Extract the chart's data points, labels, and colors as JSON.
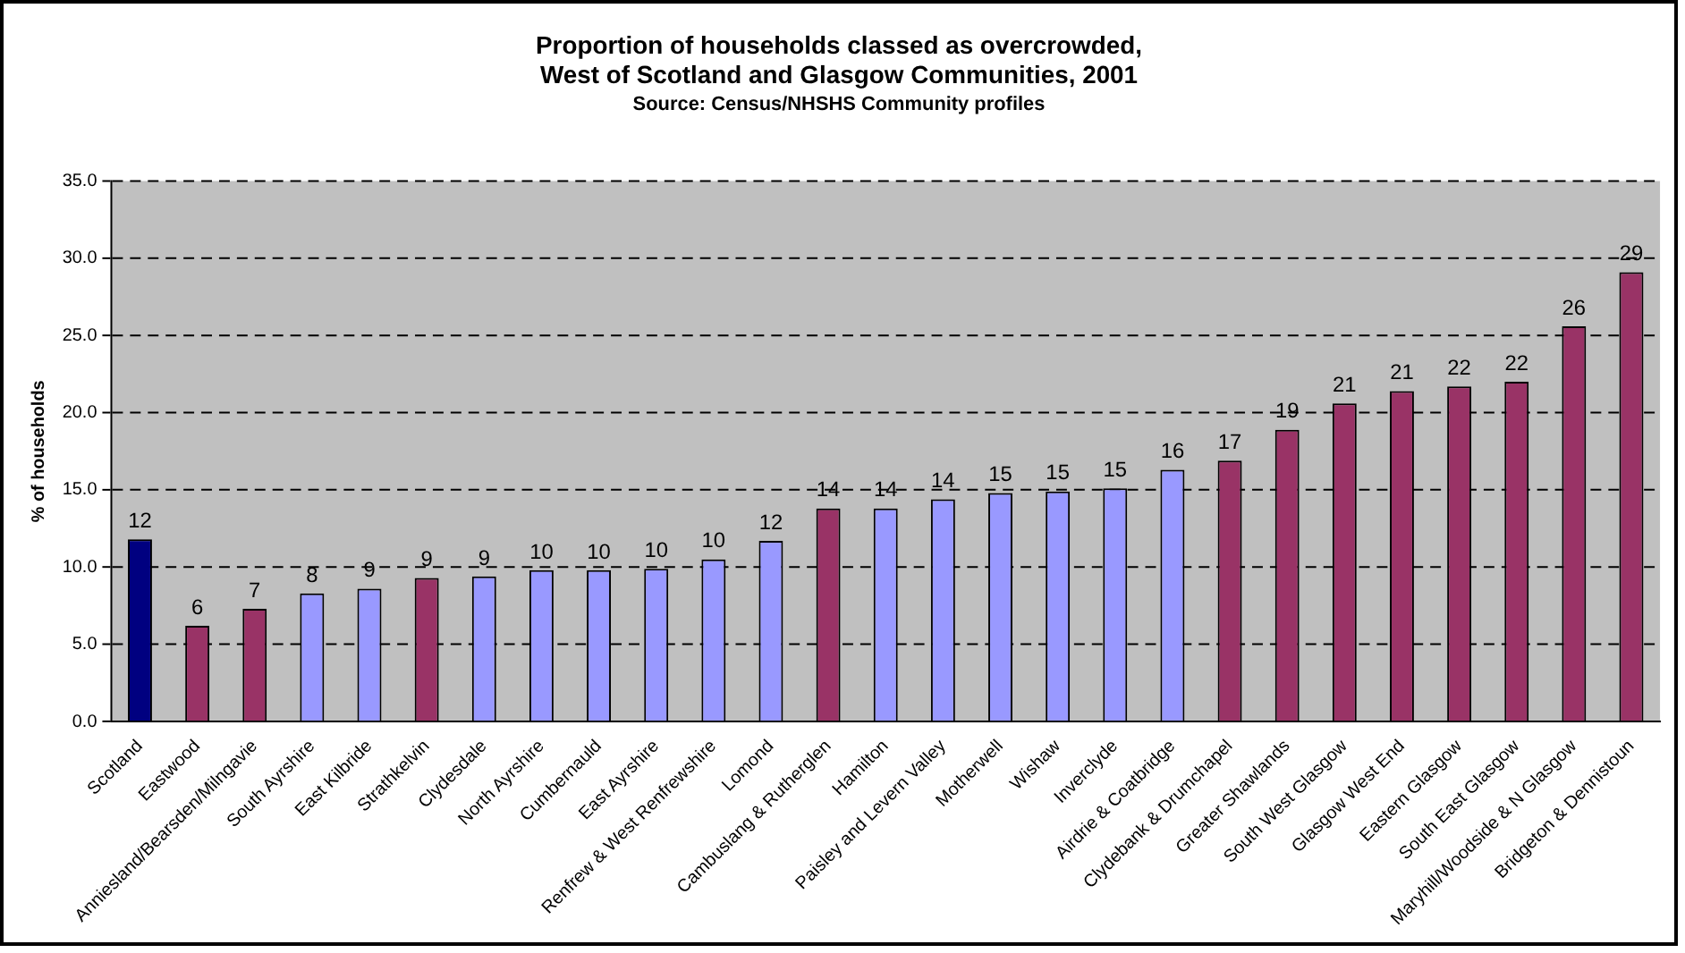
{
  "chart_data": {
    "type": "bar",
    "title": "Proportion of households classed as overcrowded,",
    "subtitle": "West of Scotland and Glasgow Communities, 2001",
    "annotations": [
      "Source: Census/NHSHS Community profiles"
    ],
    "ylabel": "% of households",
    "categories": [
      "Scotland",
      "Eastwood",
      "Anniesland/Bearsden/Milngavie",
      "South Ayrshire",
      "East Kilbride",
      "Strathkelvin",
      "Clydesdale",
      "North Ayrshire",
      "Cumbernauld",
      "East Ayrshire",
      "Renfrew & West Renfrewshire",
      "Lomond",
      "Cambuslang & Rutherglen",
      "Hamilton",
      "Paisley and Levern Valley",
      "Motherwell",
      "Wishaw",
      "Inverclyde",
      "Airdrie & Coatbridge",
      "Clydebank & Drumchapel",
      "Greater Shawlands",
      "South West Glasgow",
      "Glasgow West End",
      "Eastern Glasgow",
      "South East Glasgow",
      "Maryhill/Woodside & N Glasgow",
      "Bridgeton & Dennistoun"
    ],
    "values": [
      11.8,
      6.2,
      7.3,
      8.3,
      8.6,
      9.3,
      9.4,
      9.8,
      9.8,
      9.9,
      10.5,
      11.7,
      13.8,
      13.8,
      14.4,
      14.8,
      14.9,
      15.1,
      16.3,
      16.9,
      18.9,
      20.6,
      21.4,
      21.7,
      22.0,
      25.6,
      29.1
    ],
    "value_labels": [
      "12",
      "6",
      "7",
      "8",
      "9",
      "9",
      "9",
      "10",
      "10",
      "10",
      "10",
      "12",
      "14",
      "14",
      "14",
      "15",
      "15",
      "15",
      "16",
      "17",
      "19",
      "21",
      "21",
      "22",
      "22",
      "26",
      "29"
    ],
    "colors": [
      "#000080",
      "#993366",
      "#993366",
      "#9999ff",
      "#9999ff",
      "#993366",
      "#9999ff",
      "#9999ff",
      "#9999ff",
      "#9999ff",
      "#9999ff",
      "#9999ff",
      "#993366",
      "#9999ff",
      "#9999ff",
      "#9999ff",
      "#9999ff",
      "#9999ff",
      "#9999ff",
      "#993366",
      "#993366",
      "#993366",
      "#993366",
      "#993366",
      "#993366",
      "#993366",
      "#993366"
    ],
    "ylim": [
      0,
      35
    ],
    "yticks": [
      {
        "value": 0,
        "label": "0.0"
      },
      {
        "value": 5,
        "label": "5.0"
      },
      {
        "value": 10,
        "label": "10.0"
      },
      {
        "value": 15,
        "label": "15.0"
      },
      {
        "value": 20,
        "label": "20.0"
      },
      {
        "value": 25,
        "label": "25.0"
      },
      {
        "value": 30,
        "label": "30.0"
      },
      {
        "value": 35,
        "label": "35.0"
      }
    ],
    "grid": "y",
    "legend": false
  }
}
